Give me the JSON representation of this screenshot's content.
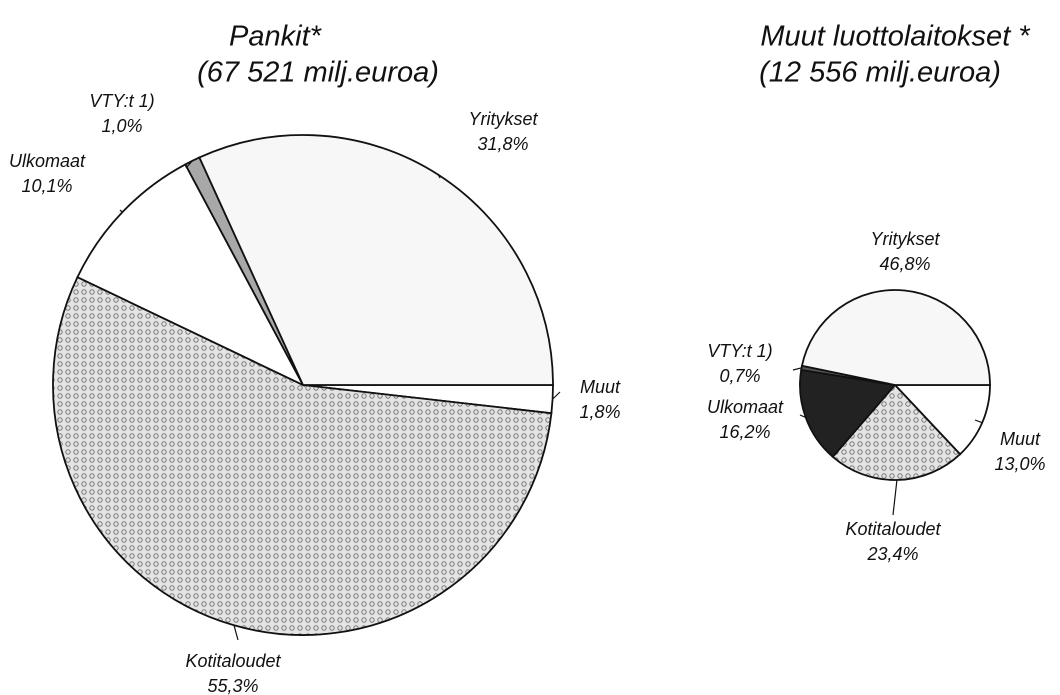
{
  "chart_data": [
    {
      "type": "pie",
      "title": "Pankit*",
      "subtitle": "(67 521 milj.euroa)",
      "categories": [
        "Muut",
        "Kotitaloudet",
        "Ulkomaat",
        "VTY:t  1)",
        "Yritykset"
      ],
      "values": [
        1.8,
        55.3,
        10.1,
        1.0,
        31.8
      ],
      "value_labels": [
        "1,8%",
        "55,3%",
        "10,1%",
        "1,0%",
        "31,8%"
      ],
      "colors": [
        "#ffffff",
        "#d4d4d4",
        "#ffffff",
        "#a8a8a8",
        "#f7f7f7"
      ]
    },
    {
      "type": "pie",
      "title": "Muut luottolaitokset *",
      "subtitle": "(12 556 milj.euroa)",
      "categories": [
        "Muut",
        "Kotitaloudet",
        "Ulkomaat",
        "VTY:t  1)",
        "Yritykset"
      ],
      "values": [
        13.0,
        23.4,
        16.2,
        0.7,
        46.8
      ],
      "value_labels": [
        "13,0%",
        "23,4%",
        "16,2%",
        "0,7%",
        "46,8%"
      ],
      "colors": [
        "#ffffff",
        "#d4d4d4",
        "#222222",
        "#555555",
        "#f7f7f7"
      ]
    }
  ]
}
